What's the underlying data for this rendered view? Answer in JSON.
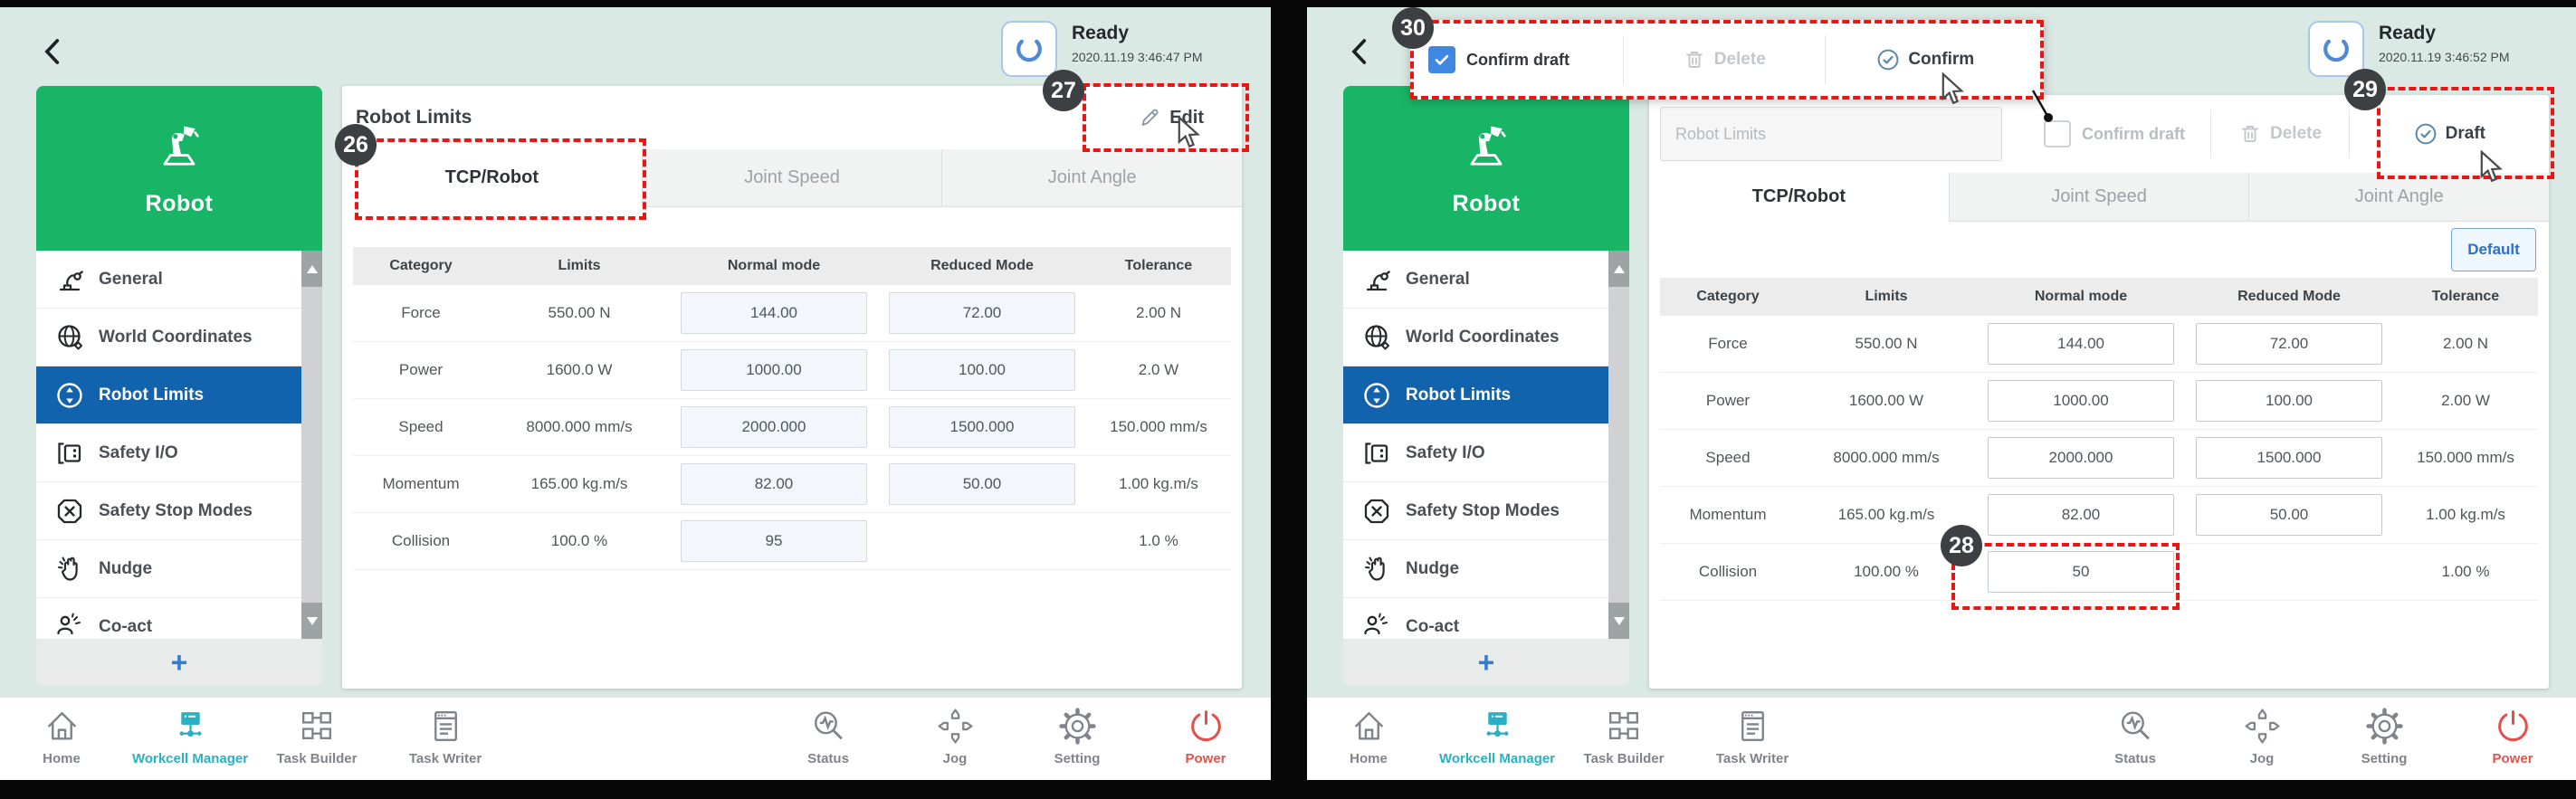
{
  "panels": {
    "left": {
      "status": {
        "label": "Ready",
        "timestamp": "2020.11.19 3:46:47 PM"
      },
      "sidebar": {
        "title": "Robot",
        "add_label": "+",
        "items": [
          {
            "key": "general",
            "icon": "general",
            "label": "General"
          },
          {
            "key": "world-coordinates",
            "icon": "world",
            "label": "World Coordinates"
          },
          {
            "key": "robot-limits",
            "icon": "limits",
            "label": "Robot Limits",
            "active": true
          },
          {
            "key": "safety-io",
            "icon": "io",
            "label": "Safety I/O"
          },
          {
            "key": "safety-stop-modes",
            "icon": "stop",
            "label": "Safety Stop Modes"
          },
          {
            "key": "nudge",
            "icon": "nudge",
            "label": "Nudge"
          },
          {
            "key": "co-act",
            "icon": "coact",
            "label": "Co-act"
          }
        ]
      },
      "main": {
        "title": "Robot Limits",
        "edit_label": "Edit",
        "tabs": [
          {
            "key": "tab-tcp-robot",
            "label": "TCP/Robot",
            "active": true
          },
          {
            "key": "tab-joint-speed",
            "label": "Joint Speed"
          },
          {
            "key": "tab-joint-angle",
            "label": "Joint Angle"
          }
        ],
        "table": {
          "headers": [
            "Category",
            "Limits",
            "Normal mode",
            "Reduced Mode",
            "Tolerance"
          ],
          "rows": [
            {
              "category": "Force",
              "limits": "550.00 N",
              "normal": "144.00",
              "reduced": "72.00",
              "tolerance": "2.00 N"
            },
            {
              "category": "Power",
              "limits": "1600.0 W",
              "normal": "1000.00",
              "reduced": "100.00",
              "tolerance": "2.0 W"
            },
            {
              "category": "Speed",
              "limits": "8000.000 mm/s",
              "normal": "2000.000",
              "reduced": "1500.000",
              "tolerance": "150.000 mm/s"
            },
            {
              "category": "Momentum",
              "limits": "165.00 kg.m/s",
              "normal": "82.00",
              "reduced": "50.00",
              "tolerance": "1.00 kg.m/s"
            },
            {
              "category": "Collision",
              "limits": "100.0 %",
              "normal": "95",
              "reduced": null,
              "tolerance": "1.0 %"
            }
          ]
        }
      },
      "nav": {
        "items": [
          {
            "key": "home",
            "icon": "home",
            "label": "Home"
          },
          {
            "key": "workcell-manager",
            "icon": "workcell",
            "label": "Workcell Manager",
            "state": "active"
          },
          {
            "key": "task-builder",
            "icon": "builder",
            "label": "Task Builder"
          },
          {
            "key": "task-writer",
            "icon": "writer",
            "label": "Task Writer"
          },
          {
            "key": "status",
            "icon": "status",
            "label": "Status"
          },
          {
            "key": "jog",
            "icon": "jog",
            "label": "Jog"
          },
          {
            "key": "setting",
            "icon": "setting",
            "label": "Setting"
          },
          {
            "key": "power",
            "icon": "power",
            "label": "Power",
            "state": "power"
          }
        ]
      },
      "annotations": {
        "tab_badge": "26",
        "edit_badge": "27"
      }
    },
    "right": {
      "status": {
        "label": "Ready",
        "timestamp": "2020.11.19 3:46:52 PM"
      },
      "callout": {
        "confirm_draft_label": "Confirm draft",
        "delete_label": "Delete",
        "confirm_label": "Confirm"
      },
      "toolbar": {
        "name_placeholder": "Robot Limits",
        "confirm_draft_label": "Confirm draft",
        "delete_label": "Delete",
        "draft_label": "Draft"
      },
      "sidebar": {
        "title": "Robot",
        "add_label": "+",
        "items": [
          {
            "key": "general",
            "icon": "general",
            "label": "General"
          },
          {
            "key": "world-coordinates",
            "icon": "world",
            "label": "World Coordinates"
          },
          {
            "key": "robot-limits",
            "icon": "limits",
            "label": "Robot Limits",
            "active": true
          },
          {
            "key": "safety-io",
            "icon": "io",
            "label": "Safety I/O"
          },
          {
            "key": "safety-stop-modes",
            "icon": "stop",
            "label": "Safety Stop Modes"
          },
          {
            "key": "nudge",
            "icon": "nudge",
            "label": "Nudge"
          },
          {
            "key": "co-act",
            "icon": "coact",
            "label": "Co-act"
          }
        ]
      },
      "main": {
        "default_label": "Default",
        "tabs": [
          {
            "key": "tab-tcp-robot",
            "label": "TCP/Robot",
            "active": true
          },
          {
            "key": "tab-joint-speed",
            "label": "Joint Speed"
          },
          {
            "key": "tab-joint-angle",
            "label": "Joint Angle"
          }
        ],
        "table": {
          "headers": [
            "Category",
            "Limits",
            "Normal mode",
            "Reduced Mode",
            "Tolerance"
          ],
          "rows": [
            {
              "category": "Force",
              "limits": "550.00 N",
              "normal": "144.00",
              "reduced": "72.00",
              "tolerance": "2.00 N"
            },
            {
              "category": "Power",
              "limits": "1600.00 W",
              "normal": "1000.00",
              "reduced": "100.00",
              "tolerance": "2.00 W"
            },
            {
              "category": "Speed",
              "limits": "8000.000 mm/s",
              "normal": "2000.000",
              "reduced": "1500.000",
              "tolerance": "150.000 mm/s"
            },
            {
              "category": "Momentum",
              "limits": "165.00 kg.m/s",
              "normal": "82.00",
              "reduced": "50.00",
              "tolerance": "1.00 kg.m/s"
            },
            {
              "category": "Collision",
              "limits": "100.00 %",
              "normal": "50",
              "reduced": null,
              "tolerance": "1.00 %"
            }
          ]
        }
      },
      "nav": {
        "items": [
          {
            "key": "home",
            "icon": "home",
            "label": "Home"
          },
          {
            "key": "workcell-manager",
            "icon": "workcell",
            "label": "Workcell Manager",
            "state": "active"
          },
          {
            "key": "task-builder",
            "icon": "builder",
            "label": "Task Builder"
          },
          {
            "key": "task-writer",
            "icon": "writer",
            "label": "Task Writer"
          },
          {
            "key": "status",
            "icon": "status",
            "label": "Status"
          },
          {
            "key": "jog",
            "icon": "jog",
            "label": "Jog"
          },
          {
            "key": "setting",
            "icon": "setting",
            "label": "Setting"
          },
          {
            "key": "power",
            "icon": "power",
            "label": "Power",
            "state": "power"
          }
        ]
      },
      "annotations": {
        "collision_badge": "28",
        "draft_badge": "29",
        "toolbar_badge": "30"
      }
    }
  }
}
